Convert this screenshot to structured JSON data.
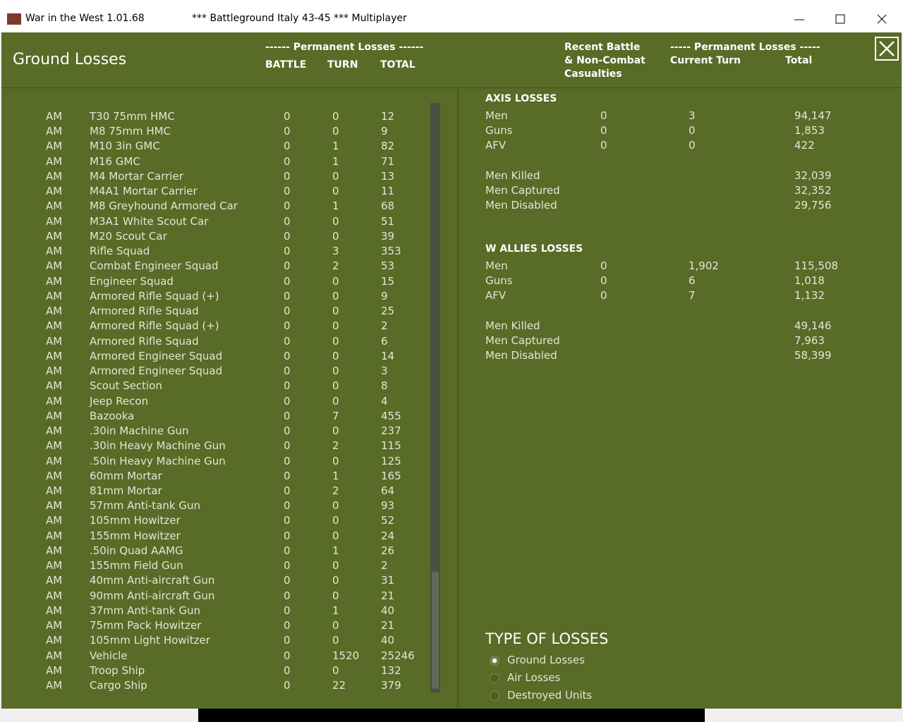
{
  "window": {
    "title": "War in the West  1.01.68",
    "subtitle": "***   Battleground Italy 43-45   ***   Multiplayer"
  },
  "header": {
    "title": "Ground Losses",
    "permanent_losses": "------ Permanent Losses ------",
    "columns": [
      "BATTLE",
      "TURN",
      "TOTAL"
    ],
    "recent": [
      "Recent Battle",
      "& Non-Combat",
      "Casualties"
    ],
    "permanent_losses_right": "----- Permanent Losses -----",
    "right_columns": [
      "Current Turn",
      "Total"
    ]
  },
  "table": {
    "rows": [
      [
        "AM",
        "T30 75mm HMC",
        0,
        0,
        12
      ],
      [
        "AM",
        "M8 75mm HMC",
        0,
        0,
        9
      ],
      [
        "AM",
        "M10 3in GMC",
        0,
        1,
        82
      ],
      [
        "AM",
        "M16 GMC",
        0,
        1,
        71
      ],
      [
        "AM",
        "M4 Mortar Carrier",
        0,
        0,
        13
      ],
      [
        "AM",
        "M4A1 Mortar Carrier",
        0,
        0,
        11
      ],
      [
        "AM",
        "M8 Greyhound Armored Car",
        0,
        1,
        68
      ],
      [
        "AM",
        "M3A1 White Scout Car",
        0,
        0,
        51
      ],
      [
        "AM",
        "M20 Scout Car",
        0,
        0,
        39
      ],
      [
        "AM",
        "Rifle Squad",
        0,
        3,
        353
      ],
      [
        "AM",
        "Combat Engineer Squad",
        0,
        2,
        53
      ],
      [
        "AM",
        "Engineer Squad",
        0,
        0,
        15
      ],
      [
        "AM",
        "Armored Rifle Squad (+)",
        0,
        0,
        9
      ],
      [
        "AM",
        "Armored Rifle Squad",
        0,
        0,
        25
      ],
      [
        "AM",
        "Armored Rifle Squad (+)",
        0,
        0,
        2
      ],
      [
        "AM",
        "Armored Rifle Squad",
        0,
        0,
        6
      ],
      [
        "AM",
        "Armored Engineer Squad",
        0,
        0,
        14
      ],
      [
        "AM",
        "Armored Engineer Squad",
        0,
        0,
        3
      ],
      [
        "AM",
        "Scout Section",
        0,
        0,
        8
      ],
      [
        "AM",
        "Jeep Recon",
        0,
        0,
        4
      ],
      [
        "AM",
        "Bazooka",
        0,
        7,
        455
      ],
      [
        "AM",
        ".30in Machine Gun",
        0,
        0,
        237
      ],
      [
        "AM",
        ".30in Heavy Machine Gun",
        0,
        2,
        115
      ],
      [
        "AM",
        ".50in Heavy Machine Gun",
        0,
        0,
        125
      ],
      [
        "AM",
        "60mm Mortar",
        0,
        1,
        165
      ],
      [
        "AM",
        "81mm Mortar",
        0,
        2,
        64
      ],
      [
        "AM",
        "57mm Anti-tank Gun",
        0,
        0,
        93
      ],
      [
        "AM",
        "105mm Howitzer",
        0,
        0,
        52
      ],
      [
        "AM",
        "155mm Howitzer",
        0,
        0,
        24
      ],
      [
        "AM",
        ".50in Quad AAMG",
        0,
        1,
        26
      ],
      [
        "AM",
        "155mm Field Gun",
        0,
        0,
        2
      ],
      [
        "AM",
        "40mm Anti-aircraft Gun",
        0,
        0,
        31
      ],
      [
        "AM",
        "90mm Anti-aircraft Gun",
        0,
        0,
        21
      ],
      [
        "AM",
        "37mm Anti-tank Gun",
        0,
        1,
        40
      ],
      [
        "AM",
        "75mm Pack Howitzer",
        0,
        0,
        21
      ],
      [
        "AM",
        "105mm Light Howitzer",
        0,
        0,
        40
      ],
      [
        "AM",
        "Vehicle",
        0,
        1520,
        25246
      ],
      [
        "AM",
        "Troop Ship",
        0,
        0,
        132
      ],
      [
        "AM",
        "Cargo Ship",
        0,
        22,
        379
      ]
    ]
  },
  "summary": [
    {
      "title": "AXIS LOSSES",
      "rows": [
        [
          "Men",
          0,
          3,
          "94,147"
        ],
        [
          "Guns",
          0,
          0,
          "1,853"
        ],
        [
          "AFV",
          0,
          0,
          "422"
        ]
      ],
      "casualties": [
        [
          "Men Killed",
          "32,039"
        ],
        [
          "Men Captured",
          "32,352"
        ],
        [
          "Men Disabled",
          "29,756"
        ]
      ]
    },
    {
      "title": "W ALLIES LOSSES",
      "rows": [
        [
          "Men",
          0,
          "1,902",
          "115,508"
        ],
        [
          "Guns",
          0,
          6,
          "1,018"
        ],
        [
          "AFV",
          0,
          7,
          "1,132"
        ]
      ],
      "casualties": [
        [
          "Men Killed",
          "49,146"
        ],
        [
          "Men Captured",
          "7,963"
        ],
        [
          "Men Disabled",
          "58,399"
        ]
      ]
    }
  ],
  "type_of_losses": {
    "title": "TYPE OF LOSSES",
    "options": [
      "Ground Losses",
      "Air Losses",
      "Destroyed Units"
    ],
    "selected": 0
  }
}
